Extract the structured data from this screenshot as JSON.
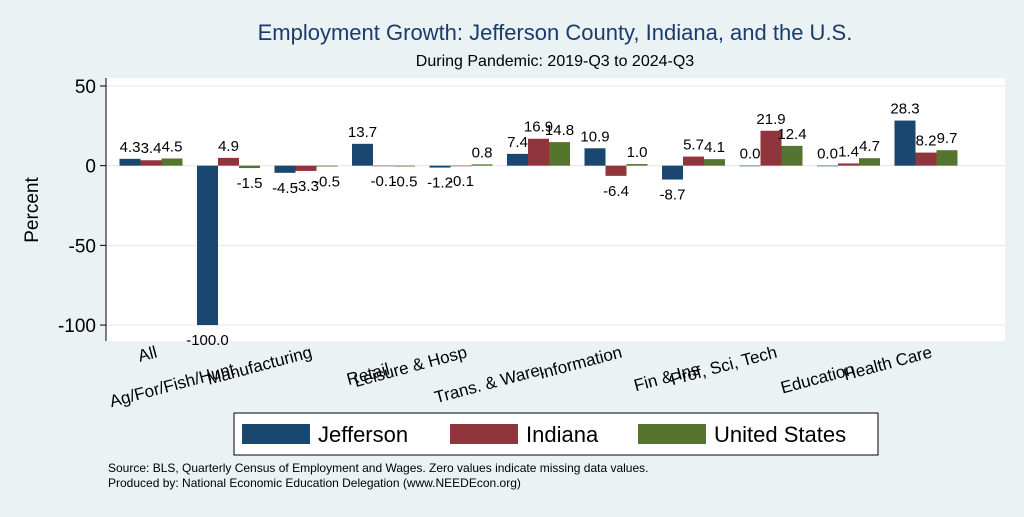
{
  "chart_data": {
    "type": "bar",
    "title": "Employment Growth: Jefferson County, Indiana, and the U.S.",
    "subtitle": "During Pandemic: 2019-Q3 to 2024-Q3",
    "ylabel": "Percent",
    "xlabel": "",
    "ylim": [
      -110,
      55
    ],
    "yticks": [
      50,
      0,
      -50,
      -100
    ],
    "grid": true,
    "legend_position": "bottom",
    "categories": [
      "All",
      "Ag/For/Fish/Hunt",
      "Manufacturing",
      "Retail",
      "Leisure & Hosp",
      "Trans. & Ware.",
      "Information",
      "Fin & Ins",
      "Prof, Sci, Tech",
      "Education",
      "Health Care"
    ],
    "series": [
      {
        "name": "Jefferson",
        "color": "#1a476f",
        "values": [
          4.3,
          -100.0,
          -4.5,
          13.7,
          -1.2,
          7.4,
          10.9,
          -8.7,
          0.0,
          0.0,
          28.3
        ],
        "labels": [
          "4.3",
          "-100.0",
          "-4.5",
          "13.7",
          "-1.2",
          "7.4",
          "10.9",
          "-8.7",
          "0.0",
          "0.0",
          "28.3"
        ]
      },
      {
        "name": "Indiana",
        "color": "#90353b",
        "values": [
          3.4,
          4.9,
          -3.3,
          -0.1,
          -0.1,
          16.9,
          -6.4,
          5.7,
          21.9,
          1.4,
          8.2
        ],
        "labels": [
          "3.4",
          "4.9",
          "-3.3",
          "-0.1",
          "-0.1",
          "16.9",
          "-6.4",
          "5.7",
          "21.9",
          "1.4",
          "8.2"
        ]
      },
      {
        "name": "United States",
        "color": "#55752f",
        "values": [
          4.5,
          -1.5,
          -0.5,
          -0.5,
          0.8,
          14.8,
          1.0,
          4.1,
          12.4,
          4.7,
          9.7
        ],
        "labels": [
          "4.5",
          "-1.5",
          "-0.5",
          "-0.5",
          "0.8",
          "14.8",
          "1.0",
          "4.1",
          "12.4",
          "4.7",
          "9.7"
        ]
      }
    ]
  },
  "notes": {
    "source": "Source: BLS, Quarterly Census of Employment and Wages. Zero values indicate missing data values.",
    "produced": "Produced by: National Economic Education Delegation (www.NEEDEcon.org)"
  }
}
